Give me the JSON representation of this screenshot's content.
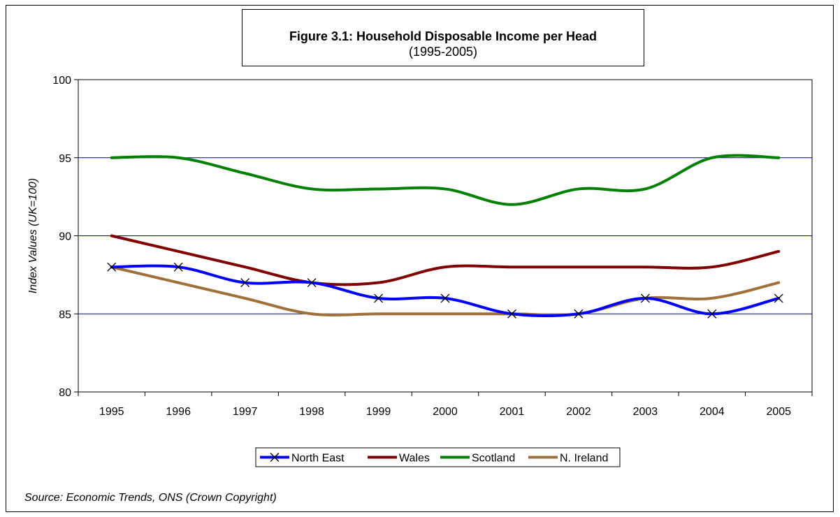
{
  "chart_data": {
    "type": "line",
    "title": "Figure 3.1: Household Disposable Income per Head",
    "subtitle": "(1995-2005)",
    "xlabel": "",
    "ylabel": "Index Values (UK=100)",
    "ylim": [
      80,
      100
    ],
    "yticks": [
      80,
      85,
      90,
      95,
      100
    ],
    "grid": true,
    "legend_position": "bottom",
    "categories": [
      "1995",
      "1996",
      "1997",
      "1998",
      "1999",
      "2000",
      "2001",
      "2002",
      "2003",
      "2004",
      "2005"
    ],
    "series": [
      {
        "name": "North East",
        "color": "#0000ff",
        "marker": "x",
        "values": [
          88,
          88,
          87,
          87,
          86,
          86,
          85,
          85,
          86,
          85,
          86
        ]
      },
      {
        "name": "Wales",
        "color": "#800000",
        "marker": "none",
        "values": [
          90,
          89,
          88,
          87,
          87,
          88,
          88,
          88,
          88,
          88,
          89
        ]
      },
      {
        "name": "Scotland",
        "color": "#008000",
        "marker": "none",
        "values": [
          95,
          95,
          94,
          93,
          93,
          93,
          92,
          93,
          93,
          95,
          95
        ]
      },
      {
        "name": "N. Ireland",
        "color": "#a0703c",
        "marker": "none",
        "values": [
          88,
          87,
          86,
          85,
          85,
          85,
          85,
          85,
          86,
          86,
          87
        ]
      }
    ],
    "source": "Source: Economic Trends, ONS (Crown Copyright)"
  }
}
